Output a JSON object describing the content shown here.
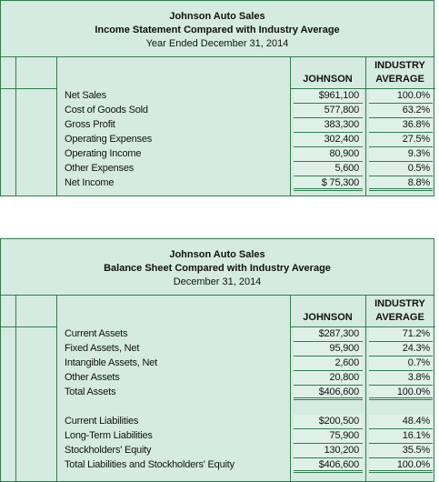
{
  "income_statement": {
    "title": "Johnson Auto Sales",
    "subtitle": "Income Statement Compared with Industry Average",
    "period": "Year Ended December 31, 2014",
    "johnson_header": "JOHNSON",
    "industry_header": [
      "INDUSTRY",
      "AVERAGE"
    ],
    "groups": [
      [
        [
          "Net Sales",
          "$961,100",
          "100.0%"
        ],
        [
          "Cost of Goods Sold",
          "577,800",
          "63.2%"
        ],
        [
          "Gross Profit",
          "383,300",
          "36.8%"
        ],
        [
          "Operating Expenses",
          "302,400",
          "27.5%"
        ],
        [
          "Operating Income",
          "80,900",
          "9.3%"
        ],
        [
          "Other Expenses",
          "5,600",
          "0.5%"
        ],
        [
          "Net Income",
          "$ 75,300",
          "8.8%"
        ]
      ]
    ]
  },
  "balance_sheet": {
    "title": "Johnson Auto Sales",
    "subtitle": "Balance Sheet Compared with Industry Average",
    "period": "December 31, 2014",
    "johnson_header": "JOHNSON",
    "industry_header": [
      "INDUSTRY",
      "AVERAGE"
    ],
    "groups": [
      [
        [
          "Current Assets",
          "$287,300",
          "71.2%"
        ],
        [
          "Fixed Assets, Net",
          "95,900",
          "24.3%"
        ],
        [
          "Intangible Assets, Net",
          "2,600",
          "0.7%"
        ],
        [
          "Other Assets",
          "20,800",
          "3.8%"
        ],
        [
          "Total Assets",
          "$406,600",
          "100.0%"
        ]
      ],
      [
        [
          "Current Liabilities",
          "$200,500",
          "48.4%"
        ],
        [
          "Long-Term Liabilities",
          "75,900",
          "16.1%"
        ],
        [
          "Stockholders' Equity",
          "130,200",
          "35.5%"
        ],
        [
          "Total Liabilities and Stockholders' Equity",
          "$406,600",
          "100.0%"
        ]
      ]
    ]
  }
}
